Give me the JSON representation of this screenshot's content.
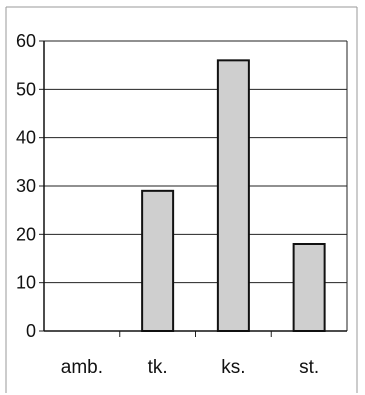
{
  "chart_data": {
    "type": "bar",
    "categories": [
      "amb.",
      "tk.",
      "ks.",
      "st."
    ],
    "values": [
      0,
      29,
      56,
      18
    ],
    "title": "",
    "xlabel": "",
    "ylabel": "",
    "ylim": [
      0,
      60
    ],
    "yticks": [
      0,
      10,
      20,
      30,
      40,
      50,
      60
    ],
    "grid": true,
    "legend": "none",
    "colors": {
      "bar_fill": "#cfcfcf",
      "bar_stroke": "#111111",
      "grid": "#222222",
      "frame": "#9a9a9a"
    }
  }
}
